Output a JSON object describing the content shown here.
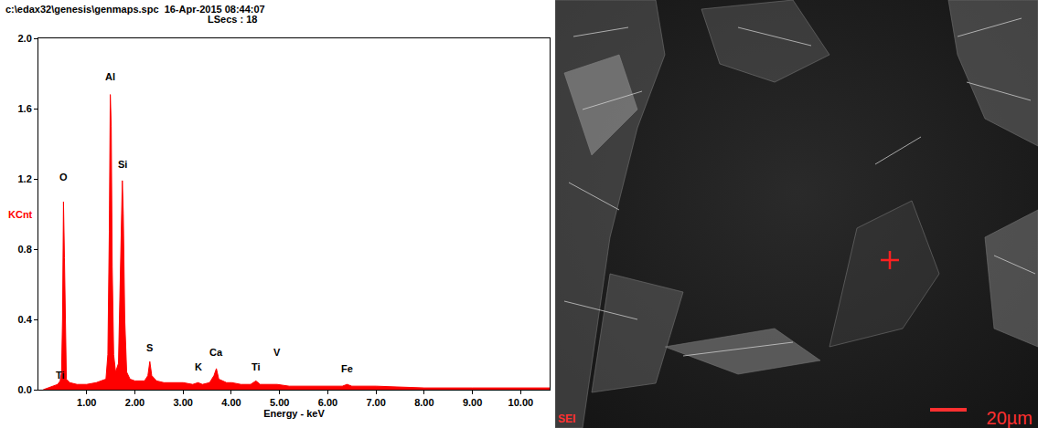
{
  "chart_data": {
    "type": "area",
    "title": "c:\\edax32\\genesis\\genmaps.spc  16-Apr-2015 08:44:07",
    "subtitle": "LSecs : 18",
    "x_label": "Energy - keV",
    "y_label": "KCnt",
    "color": "#ff0000",
    "grid": false,
    "x": [
      0.1,
      0.2,
      0.3,
      0.4,
      0.45,
      0.48,
      0.5,
      0.52,
      0.54,
      0.56,
      0.58,
      0.65,
      0.8,
      1.0,
      1.2,
      1.4,
      1.44,
      1.47,
      1.49,
      1.51,
      1.53,
      1.56,
      1.6,
      1.66,
      1.7,
      1.74,
      1.76,
      1.79,
      1.83,
      1.9,
      2.0,
      2.1,
      2.2,
      2.27,
      2.31,
      2.35,
      2.45,
      2.6,
      2.8,
      3.0,
      3.2,
      3.31,
      3.4,
      3.55,
      3.64,
      3.69,
      3.74,
      3.9,
      4.01,
      4.2,
      4.4,
      4.51,
      4.6,
      4.95,
      5.2,
      5.5,
      6.0,
      6.3,
      6.4,
      6.5,
      7.0,
      8.0,
      9.0,
      10.0,
      10.6
    ],
    "values": [
      0.0,
      0.01,
      0.02,
      0.03,
      0.05,
      0.1,
      0.4,
      1.07,
      0.75,
      0.3,
      0.06,
      0.04,
      0.03,
      0.03,
      0.04,
      0.06,
      0.2,
      0.9,
      1.68,
      1.5,
      0.7,
      0.2,
      0.1,
      0.15,
      0.6,
      1.19,
      1.0,
      0.4,
      0.1,
      0.06,
      0.05,
      0.05,
      0.05,
      0.08,
      0.16,
      0.08,
      0.05,
      0.04,
      0.04,
      0.04,
      0.03,
      0.04,
      0.03,
      0.04,
      0.08,
      0.12,
      0.06,
      0.04,
      0.04,
      0.03,
      0.03,
      0.05,
      0.03,
      0.03,
      0.02,
      0.02,
      0.02,
      0.02,
      0.03,
      0.02,
      0.02,
      0.01,
      0.01,
      0.01,
      0.01
    ],
    "xlim": [
      0,
      10.6
    ],
    "ylim": [
      0,
      2.0
    ],
    "xticks": [
      {
        "value": 1,
        "label": "1.00"
      },
      {
        "value": 2,
        "label": "2.00"
      },
      {
        "value": 3,
        "label": "3.00"
      },
      {
        "value": 4,
        "label": "4.00"
      },
      {
        "value": 5,
        "label": "5.00"
      },
      {
        "value": 6,
        "label": "6.00"
      },
      {
        "value": 7,
        "label": "7.00"
      },
      {
        "value": 8,
        "label": "8.00"
      },
      {
        "value": 9,
        "label": "9.00"
      },
      {
        "value": 10,
        "label": "10.00"
      }
    ],
    "yticks": [
      {
        "value": 0,
        "label": "0.0"
      },
      {
        "value": 0.4,
        "label": "0.4"
      },
      {
        "value": 0.8,
        "label": "0.8"
      },
      {
        "value": 1.2,
        "label": "1.2"
      },
      {
        "value": 1.6,
        "label": "1.6"
      },
      {
        "value": 2.0,
        "label": "2.0"
      }
    ],
    "annotations": [
      {
        "text": "Ti",
        "x": 0.45,
        "y": 0.04
      },
      {
        "text": "O",
        "x": 0.52,
        "y": 1.17
      },
      {
        "text": "Al",
        "x": 1.49,
        "y": 1.74
      },
      {
        "text": "Si",
        "x": 1.75,
        "y": 1.24
      },
      {
        "text": "S",
        "x": 2.31,
        "y": 0.2
      },
      {
        "text": "K",
        "x": 3.31,
        "y": 0.09
      },
      {
        "text": "Ca",
        "x": 3.69,
        "y": 0.17
      },
      {
        "text": "Ti",
        "x": 4.51,
        "y": 0.09
      },
      {
        "text": "V",
        "x": 4.95,
        "y": 0.17
      },
      {
        "text": "Fe",
        "x": 6.4,
        "y": 0.08
      }
    ]
  },
  "micrograph": {
    "label": "SEI",
    "scale_bar": "20µm"
  }
}
